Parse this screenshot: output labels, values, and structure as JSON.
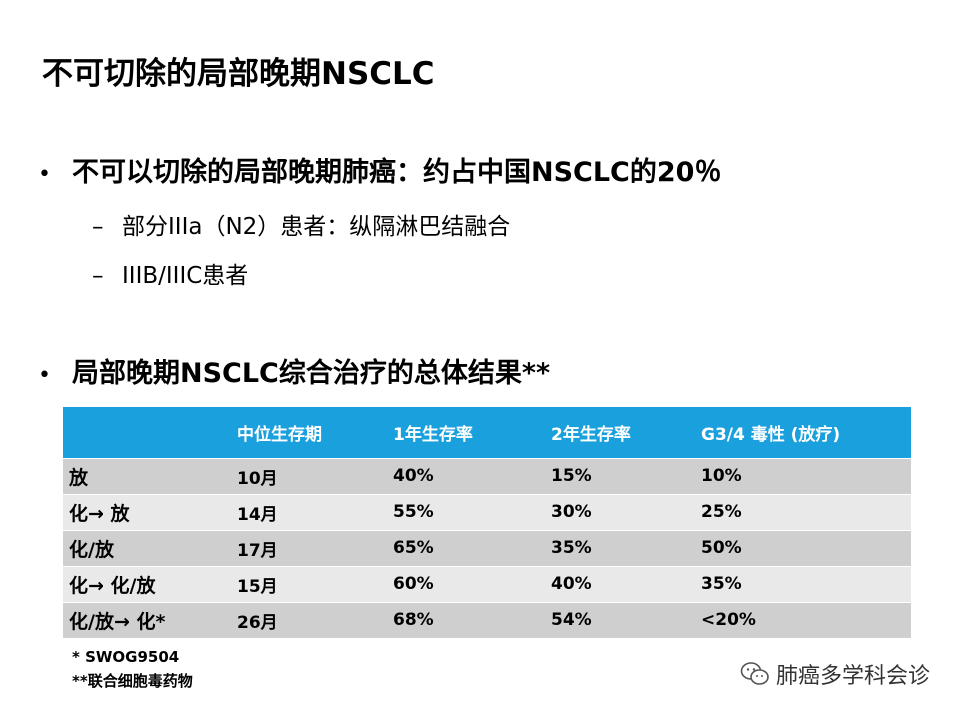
{
  "slide": {
    "title": "不可切除的局部晚期NSCLC"
  },
  "bullets": [
    {
      "text": "不可以切除的局部晚期肺癌：约占中国NSCLC的20％",
      "subs": [
        "部分IIIa（N2）患者：纵隔淋巴结融合",
        "IIIB/IIIC患者"
      ]
    },
    {
      "text": "局部晚期NSCLC综合治疗的总体结果**"
    }
  ],
  "bullet_symbol": "•",
  "sub_symbol": "–",
  "table": {
    "headers": [
      "",
      "中位生存期",
      "1年生存率",
      "2年生存率",
      "G3/4 毒性 (放疗)"
    ],
    "rows": [
      [
        "放",
        "10月",
        "40%",
        "15%",
        "10%"
      ],
      [
        "化→ 放",
        "14月",
        "55%",
        "30%",
        "25%"
      ],
      [
        "化/放",
        "17月",
        "65%",
        "35%",
        "50%"
      ],
      [
        "化→ 化/放",
        "15月",
        "60%",
        "40%",
        "35%"
      ],
      [
        "化/放→ 化*",
        "26月",
        "68%",
        "54%",
        "<20%"
      ]
    ]
  },
  "footnotes": [
    "* SWOG9504",
    "**联合细胞毒药物"
  ],
  "watermark": {
    "icon": "wechat-icon",
    "text": "肺癌多学科会诊"
  },
  "colors": {
    "header_bg": "#1aa0dd",
    "row_dark": "#cfcfcf",
    "row_light": "#e9e9e9"
  }
}
